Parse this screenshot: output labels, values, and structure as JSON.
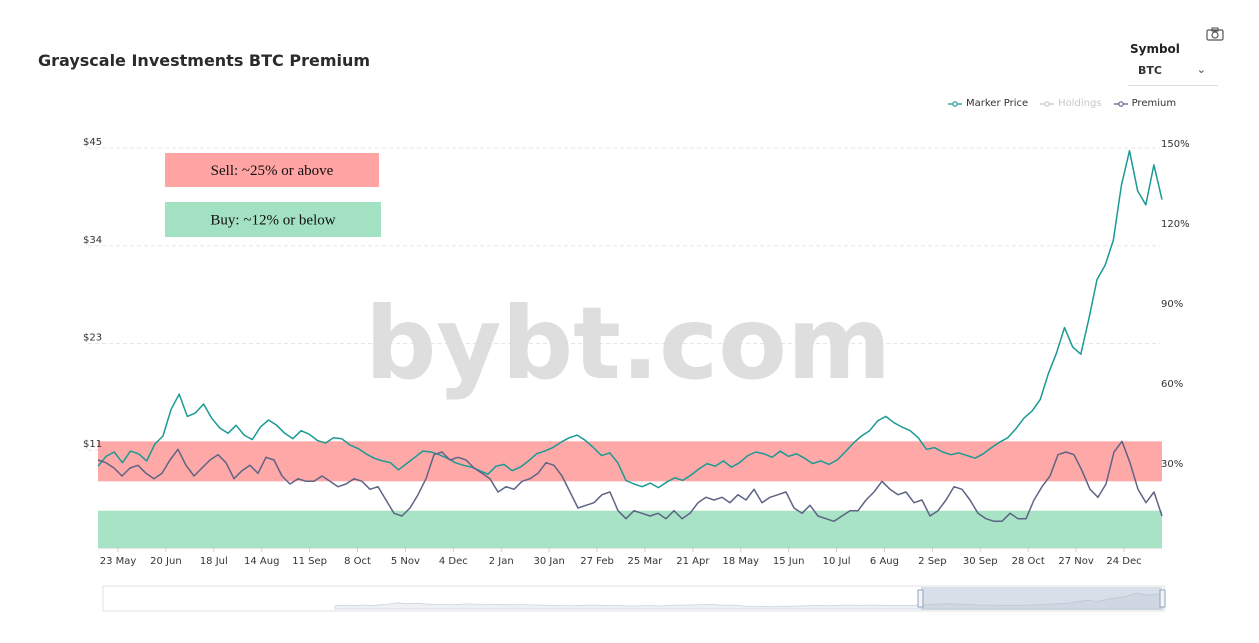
{
  "header": {
    "title": "Grayscale Investments BTC Premium"
  },
  "symbol": {
    "label": "Symbol",
    "value": "BTC"
  },
  "watermark": "bybt.com",
  "legend": [
    {
      "label": "Marker Price",
      "color": "#1a9a94",
      "active": true
    },
    {
      "label": "Holdings",
      "color": "#c8c8c8",
      "active": false
    },
    {
      "label": "Premium",
      "color": "#5e6484",
      "active": true
    }
  ],
  "chart_data": {
    "type": "line",
    "x_tick_labels": [
      "23 May",
      "20 Jun",
      "18 Jul",
      "14 Aug",
      "11 Sep",
      "8 Oct",
      "5 Nov",
      "4 Dec",
      "2 Jan",
      "30 Jan",
      "27 Feb",
      "25 Mar",
      "21 Apr",
      "18 May",
      "15 Jun",
      "10 Jul",
      "6 Aug",
      "2 Sep",
      "30 Sep",
      "28 Oct",
      "27 Nov",
      "24 Dec"
    ],
    "y_left": {
      "ticks": [
        "$45",
        "$34",
        "$23",
        "$11"
      ],
      "values": [
        45,
        34,
        23,
        11
      ],
      "range": [
        0,
        45
      ]
    },
    "y_right": {
      "ticks": [
        "150%",
        "120%",
        "90%",
        "60%",
        "30%"
      ],
      "values": [
        150,
        120,
        90,
        60,
        30
      ],
      "range": [
        0,
        150
      ]
    },
    "series": [
      {
        "name": "Marker Price",
        "color": "#1a9a94",
        "axis": "left",
        "values": [
          9.2,
          10.3,
          10.8,
          9.6,
          10.9,
          10.6,
          9.8,
          11.7,
          12.6,
          15.6,
          17.3,
          14.8,
          15.2,
          16.2,
          14.6,
          13.5,
          12.9,
          13.8,
          12.7,
          12.2,
          13.6,
          14.4,
          13.8,
          12.9,
          12.3,
          13.2,
          12.8,
          12.1,
          11.8,
          12.4,
          12.3,
          11.6,
          11.2,
          10.6,
          10.1,
          9.8,
          9.6,
          8.8,
          9.5,
          10.2,
          10.9,
          10.8,
          10.5,
          10.1,
          9.6,
          9.3,
          9.1,
          8.7,
          8.3,
          9.2,
          9.4,
          8.7,
          9.1,
          9.8,
          10.6,
          10.9,
          11.3,
          11.9,
          12.4,
          12.7,
          12.1,
          11.3,
          10.4,
          10.7,
          9.6,
          7.6,
          7.2,
          6.9,
          7.3,
          6.8,
          7.4,
          7.9,
          7.6,
          8.2,
          8.9,
          9.5,
          9.2,
          9.8,
          9.1,
          9.6,
          10.4,
          10.8,
          10.6,
          10.2,
          10.9,
          10.3,
          10.6,
          10.1,
          9.5,
          9.8,
          9.4,
          9.9,
          10.8,
          11.8,
          12.6,
          13.2,
          14.3,
          14.8,
          14.1,
          13.6,
          13.2,
          12.4,
          11.1,
          11.3,
          10.8,
          10.5,
          10.7,
          10.4,
          10.1,
          10.6,
          11.3,
          11.9,
          12.4,
          13.4,
          14.6,
          15.4,
          16.7,
          19.6,
          21.9,
          24.8,
          22.6,
          21.8,
          25.8,
          30.2,
          31.8,
          34.6,
          40.8,
          44.7,
          40.2,
          38.6,
          43.1,
          39.2
        ]
      },
      {
        "name": "Premium",
        "color": "#5e6484",
        "axis": "right",
        "values": [
          33,
          32,
          30,
          27,
          30,
          31,
          28,
          26,
          28,
          33,
          37,
          31,
          27,
          30,
          33,
          35,
          32,
          26,
          29,
          31,
          28,
          34,
          33,
          27,
          24,
          26,
          25,
          25,
          27,
          25,
          23,
          24,
          26,
          25,
          22,
          23,
          18,
          13,
          12,
          15,
          20,
          26,
          35,
          36,
          33,
          34,
          33,
          30,
          28,
          26,
          21,
          23,
          22,
          25,
          26,
          28,
          32,
          31,
          27,
          21,
          15,
          16,
          17,
          20,
          21,
          14,
          11,
          14,
          13,
          12,
          13,
          11,
          14,
          11,
          13,
          17,
          19,
          18,
          19,
          17,
          20,
          18,
          22,
          17,
          19,
          20,
          21,
          15,
          13,
          16,
          12,
          11,
          10,
          12,
          14,
          14,
          18,
          21,
          25,
          22,
          20,
          21,
          17,
          18,
          12,
          14,
          18,
          23,
          22,
          18,
          13,
          11,
          10,
          10,
          13,
          11,
          11,
          18,
          23,
          27,
          35,
          36,
          35,
          29,
          22,
          19,
          24,
          36,
          40,
          32,
          22,
          17,
          21,
          12
        ]
      }
    ],
    "annotations": [
      {
        "label": "Sell: ~25% or above",
        "color": "#ffa3a3",
        "range_percent": [
          25,
          40
        ]
      },
      {
        "label": "Buy: ~12% or below",
        "color": "#a3e1c3",
        "range_percent": [
          0,
          14
        ]
      }
    ]
  }
}
